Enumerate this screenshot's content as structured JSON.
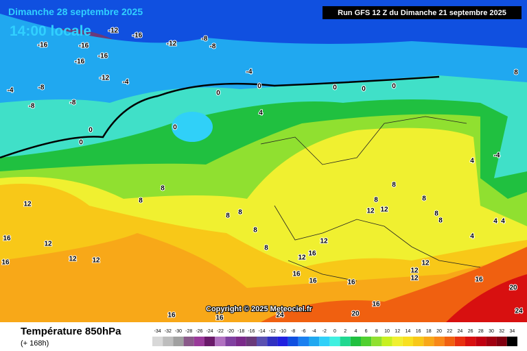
{
  "header": {
    "date": "Dimanche 28 septembre 2025",
    "time": "14:00 locale",
    "run": "Run GFS 12 Z du Dimanche 21 septembre 2025"
  },
  "copyright": "Copyright © 2025 Meteociel.fr",
  "footer": {
    "title": "Température 850hPa",
    "lead": "(+ 168h)"
  },
  "map_labels": [
    -12,
    -16,
    -12,
    -8,
    -8,
    -16,
    -16,
    -16,
    -16,
    -12,
    -4,
    -4,
    -4,
    -8,
    -8,
    -8,
    0,
    0,
    0,
    0,
    0,
    0,
    0,
    0,
    4,
    4,
    -4,
    8,
    8,
    8,
    8,
    8,
    8,
    8,
    12,
    12,
    12,
    12,
    16,
    16,
    12,
    12,
    12,
    16,
    12,
    16,
    16,
    16,
    12,
    12,
    16,
    20,
    24,
    16,
    16,
    20,
    24,
    16,
    8,
    8,
    4,
    4,
    4,
    8,
    8,
    8,
    12
  ],
  "legend": {
    "values": [
      -34,
      -32,
      -30,
      -28,
      -26,
      -24,
      -22,
      -20,
      -18,
      -16,
      -14,
      -12,
      -10,
      -8,
      -6,
      -4,
      -2,
      0,
      2,
      4,
      6,
      8,
      10,
      12,
      14,
      16,
      18,
      20,
      22,
      24,
      26,
      28,
      30,
      32,
      34
    ],
    "colors": [
      "#d8d8d8",
      "#bdbdbd",
      "#a0a0a0",
      "#8a5a8a",
      "#9a3a9a",
      "#6a1a6a",
      "#b070c0",
      "#8040a0",
      "#7a2a8a",
      "#6a3a7a",
      "#5a50b0",
      "#3030c0",
      "#2020e0",
      "#1050e0",
      "#1a80f0",
      "#20a8f0",
      "#30d0f8",
      "#40f0e0",
      "#20d890",
      "#20c040",
      "#50d030",
      "#90e030",
      "#c8f020",
      "#f0f030",
      "#f8e020",
      "#f8c818",
      "#f8a818",
      "#f88818",
      "#f06010",
      "#e83010",
      "#d81010",
      "#c00010",
      "#a00010",
      "#800010",
      "#000000"
    ]
  }
}
